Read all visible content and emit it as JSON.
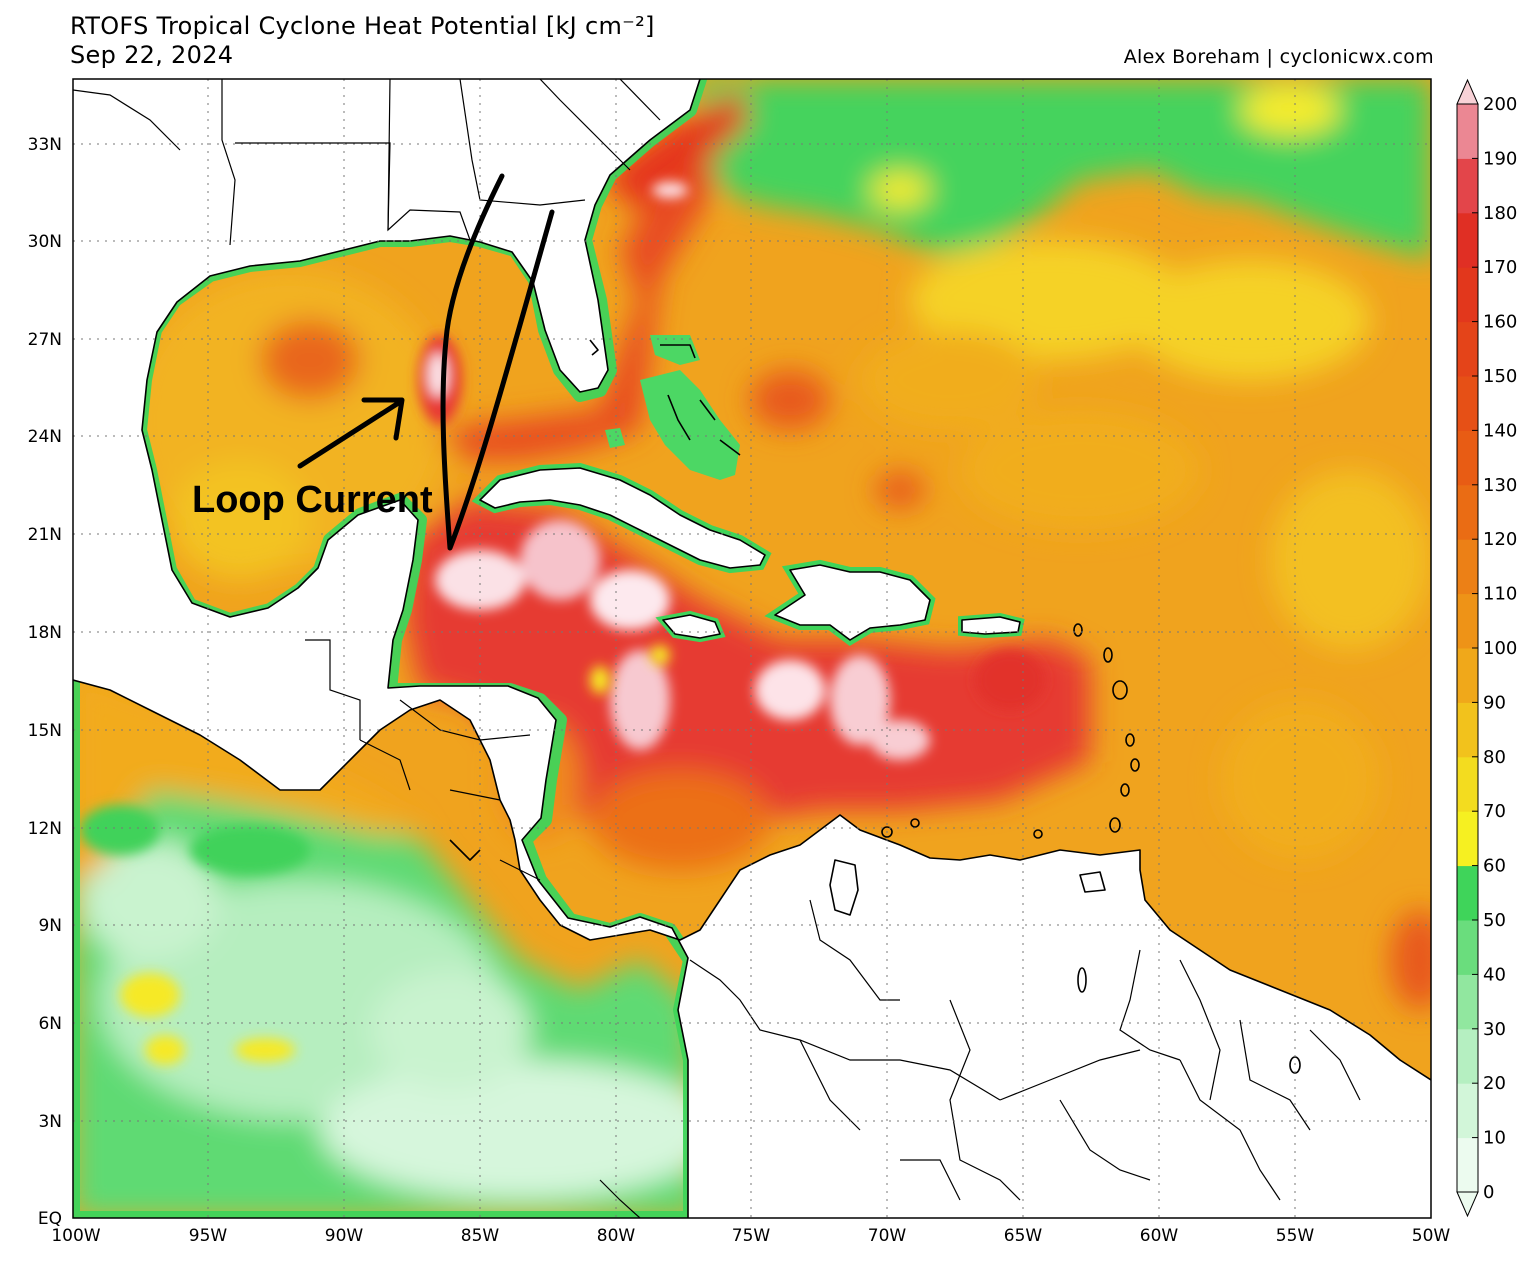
{
  "header": {
    "title": "RTOFS Tropical Cyclone Heat Potential [kJ cm⁻²]",
    "date": "Sep 22, 2024",
    "credit": "Alex Boreham | cyclonicwx.com"
  },
  "annotation": {
    "label": "Loop Current"
  },
  "axes": {
    "lat_labels": [
      "33N",
      "30N",
      "27N",
      "24N",
      "21N",
      "18N",
      "15N",
      "12N",
      "9N",
      "6N",
      "3N",
      "EQ"
    ],
    "lon_labels": [
      "100W",
      "95W",
      "90W",
      "85W",
      "80W",
      "75W",
      "70W",
      "65W",
      "60W",
      "55W",
      "50W"
    ]
  },
  "colorbar": {
    "ticks": [
      "0",
      "10",
      "20",
      "30",
      "40",
      "50",
      "60",
      "70",
      "80",
      "90",
      "100",
      "110",
      "120",
      "130",
      "140",
      "150",
      "160",
      "170",
      "180",
      "190",
      "200"
    ],
    "colors": [
      "#ecfbef",
      "#d2f6d9",
      "#b5efc1",
      "#91e79f",
      "#6add7d",
      "#3fd45a",
      "#f6f021",
      "#f3dc1f",
      "#f2c21c",
      "#f0a81a",
      "#ee9317",
      "#ec8016",
      "#ea6c14",
      "#e85c14",
      "#e65016",
      "#e44419",
      "#e2371c",
      "#e02f24",
      "#e3454a",
      "#eb8793",
      "#f8d2d7"
    ]
  },
  "palette": {
    "ocean_high": "#e8383a",
    "ocean_mid": "#f39a1f",
    "ocean_low": "#f6d62a",
    "cool_green": "#4fd66a",
    "pale_green": "#c8f2d0",
    "hot_white": "#fde6ea",
    "land": "#ffffff"
  }
}
